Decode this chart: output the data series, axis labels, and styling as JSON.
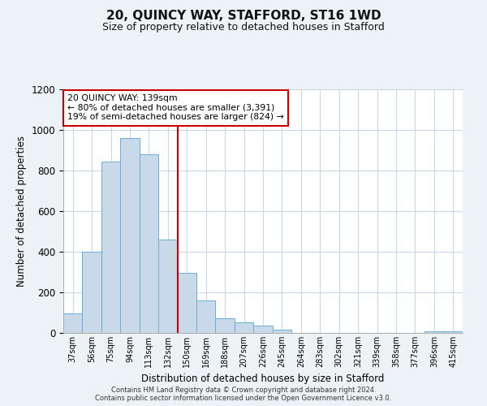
{
  "title": "20, QUINCY WAY, STAFFORD, ST16 1WD",
  "subtitle": "Size of property relative to detached houses in Stafford",
  "xlabel": "Distribution of detached houses by size in Stafford",
  "ylabel": "Number of detached properties",
  "bar_labels": [
    "37sqm",
    "56sqm",
    "75sqm",
    "94sqm",
    "113sqm",
    "132sqm",
    "150sqm",
    "169sqm",
    "188sqm",
    "207sqm",
    "226sqm",
    "245sqm",
    "264sqm",
    "283sqm",
    "302sqm",
    "321sqm",
    "339sqm",
    "358sqm",
    "377sqm",
    "396sqm",
    "415sqm"
  ],
  "bar_values": [
    95,
    400,
    845,
    960,
    880,
    460,
    295,
    160,
    72,
    52,
    35,
    18,
    0,
    0,
    0,
    0,
    0,
    0,
    0,
    8,
    8
  ],
  "bar_color": "#c8d9ea",
  "bar_edge_color": "#6baed6",
  "reference_line_color": "#cc0000",
  "annotation_text_line1": "20 QUINCY WAY: 139sqm",
  "annotation_text_line2": "← 80% of detached houses are smaller (3,391)",
  "annotation_text_line3": "19% of semi-detached houses are larger (824) →",
  "ylim": [
    0,
    1200
  ],
  "yticks": [
    0,
    200,
    400,
    600,
    800,
    1000,
    1200
  ],
  "footer_line1": "Contains HM Land Registry data © Crown copyright and database right 2024.",
  "footer_line2": "Contains public sector information licensed under the Open Government Licence v3.0.",
  "background_color": "#edf2f7",
  "plot_background": "#ffffff",
  "grid_color": "#c8d8e8"
}
